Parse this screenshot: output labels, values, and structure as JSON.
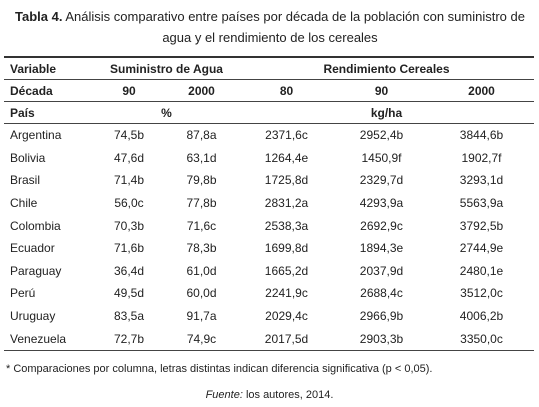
{
  "caption": {
    "label": "Tabla 4.",
    "text": "Análisis comparativo entre países por década de la población con suministro de agua y el rendimiento de los cereales"
  },
  "table": {
    "header_rows": [
      [
        "Variable",
        "Suministro de Agua",
        "Rendimiento Cereales"
      ],
      [
        "Década",
        "90",
        "2000",
        "80",
        "90",
        "2000"
      ],
      [
        "País",
        "%",
        "kg/ha"
      ]
    ],
    "rows": [
      [
        "Argentina",
        "74,5b",
        "87,8a",
        "2371,6c",
        "2952,4b",
        "3844,6b"
      ],
      [
        "Bolivia",
        "47,6d",
        "63,1d",
        "1264,4e",
        "1450,9f",
        "1902,7f"
      ],
      [
        "Brasil",
        "71,4b",
        "79,8b",
        "1725,8d",
        "2329,7d",
        "3293,1d"
      ],
      [
        "Chile",
        "56,0c",
        "77,8b",
        "2831,2a",
        "4293,9a",
        "5563,9a"
      ],
      [
        "Colombia",
        "70,3b",
        "71,6c",
        "2538,3a",
        "2692,9c",
        "3792,5b"
      ],
      [
        "Ecuador",
        "71,6b",
        "78,3b",
        "1699,8d",
        "1894,3e",
        "2744,9e"
      ],
      [
        "Paraguay",
        "36,4d",
        "61,0d",
        "1665,2d",
        "2037,9d",
        "2480,1e"
      ],
      [
        "Perú",
        "49,5d",
        "60,0d",
        "2241,9c",
        "2688,4c",
        "3512,0c"
      ],
      [
        "Uruguay",
        "83,5a",
        "91,7a",
        "2029,4c",
        "2966,9b",
        "4006,2b"
      ],
      [
        "Venezuela",
        "72,7b",
        "74,9c",
        "2017,5d",
        "2903,3b",
        "3350,0c"
      ]
    ]
  },
  "footnote": "* Comparaciones por columna, letras distintas indican diferencia significativa (p < 0,05).",
  "source": {
    "label": "Fuente:",
    "text": " los autores, 2014."
  }
}
